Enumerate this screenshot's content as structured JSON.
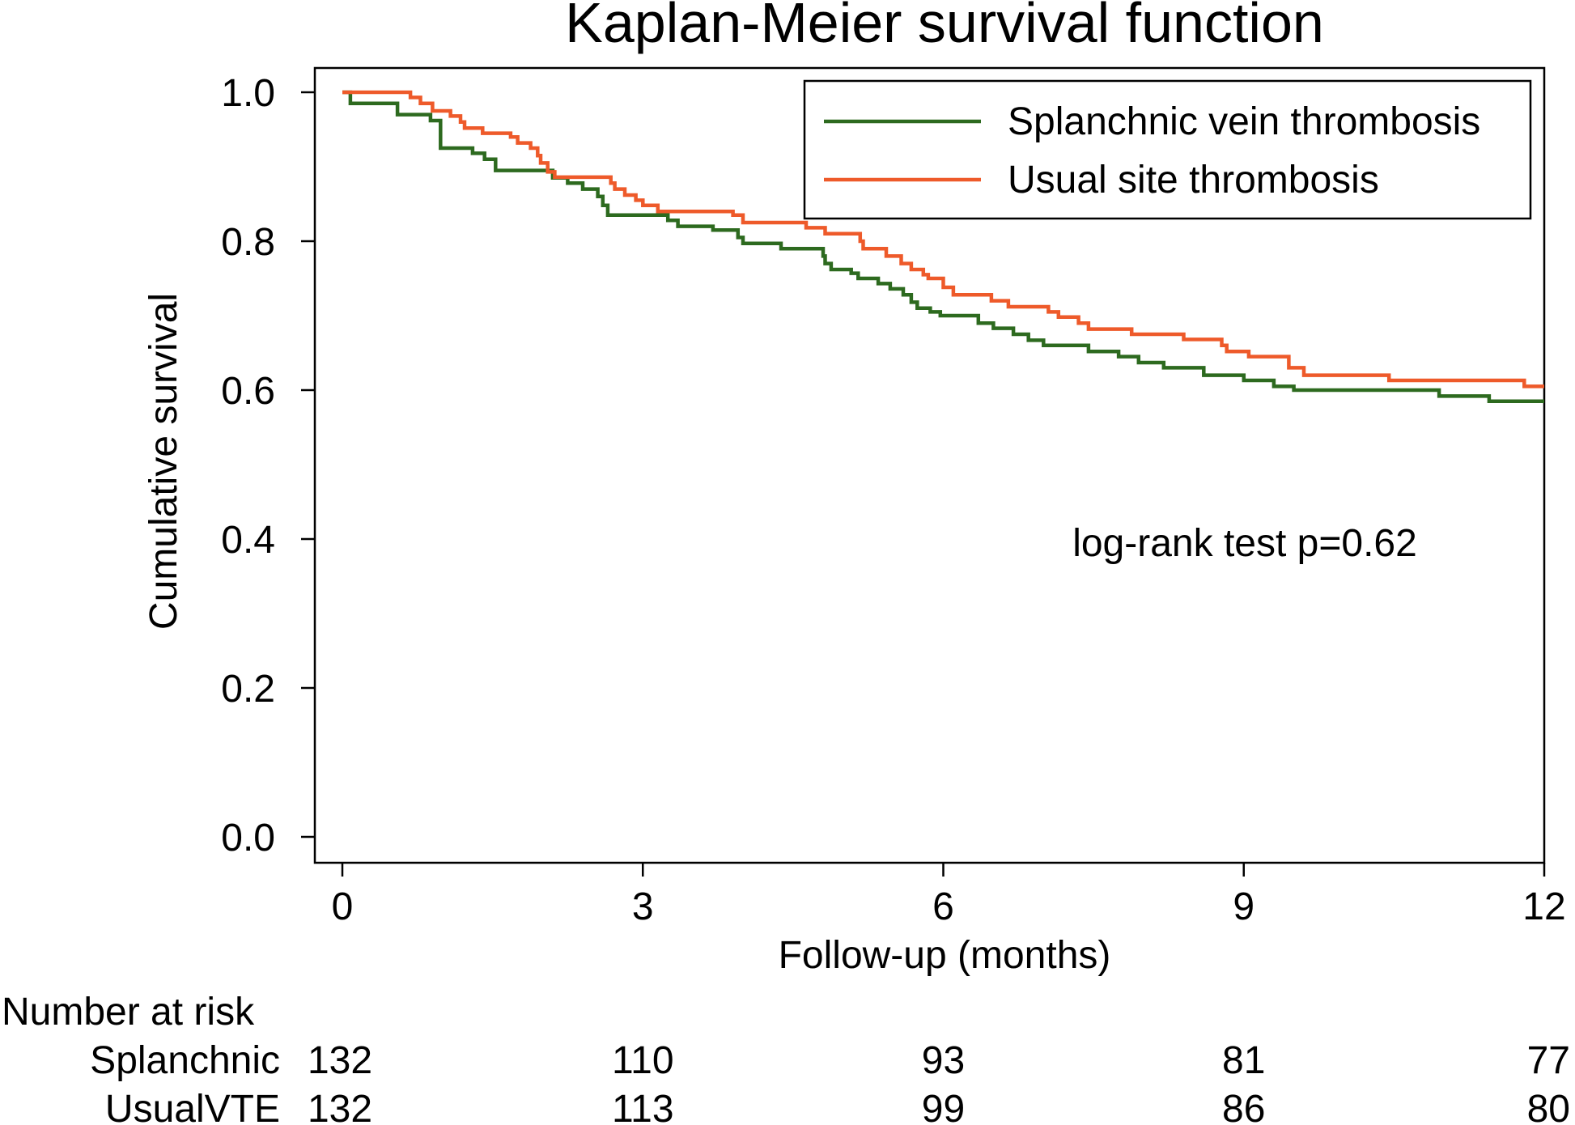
{
  "chart_data": {
    "type": "line",
    "subtype": "kaplan-meier step",
    "title": "Kaplan-Meier survival function",
    "xlabel": "Follow-up (months)",
    "ylabel": "Cumulative survival",
    "xlim": [
      0,
      12
    ],
    "ylim": [
      0,
      1
    ],
    "xticks": [
      0,
      3,
      6,
      9,
      12
    ],
    "xtick_labels": [
      "0",
      "3",
      "6",
      "9",
      "12"
    ],
    "yticks": [
      0,
      0.2,
      0.4,
      0.6,
      0.8,
      1.0
    ],
    "ytick_labels": [
      "0.0",
      "0.2",
      "0.4",
      "0.6",
      "0.8",
      "1.0"
    ],
    "grid": false,
    "legend_position": "top-right",
    "annotation": "log-rank test p=0.62",
    "series": [
      {
        "name": "Splanchnic vein thrombosis",
        "color": "#2d6a1f",
        "points": [
          [
            0,
            1.0
          ],
          [
            0.08,
            0.985
          ],
          [
            0.55,
            0.97
          ],
          [
            0.88,
            0.962
          ],
          [
            0.98,
            0.925
          ],
          [
            1.3,
            0.918
          ],
          [
            1.42,
            0.91
          ],
          [
            1.53,
            0.895
          ],
          [
            2.05,
            0.895
          ],
          [
            2.1,
            0.885
          ],
          [
            2.25,
            0.878
          ],
          [
            2.4,
            0.87
          ],
          [
            2.55,
            0.86
          ],
          [
            2.6,
            0.848
          ],
          [
            2.65,
            0.835
          ],
          [
            3.25,
            0.828
          ],
          [
            3.35,
            0.82
          ],
          [
            3.7,
            0.815
          ],
          [
            3.95,
            0.805
          ],
          [
            4.0,
            0.797
          ],
          [
            4.38,
            0.79
          ],
          [
            4.8,
            0.78
          ],
          [
            4.82,
            0.77
          ],
          [
            4.88,
            0.762
          ],
          [
            5.08,
            0.757
          ],
          [
            5.15,
            0.75
          ],
          [
            5.35,
            0.743
          ],
          [
            5.47,
            0.736
          ],
          [
            5.6,
            0.728
          ],
          [
            5.68,
            0.718
          ],
          [
            5.74,
            0.71
          ],
          [
            5.87,
            0.705
          ],
          [
            5.97,
            0.7
          ],
          [
            6.35,
            0.69
          ],
          [
            6.5,
            0.683
          ],
          [
            6.7,
            0.675
          ],
          [
            6.85,
            0.667
          ],
          [
            7.0,
            0.66
          ],
          [
            7.45,
            0.652
          ],
          [
            7.75,
            0.645
          ],
          [
            7.95,
            0.637
          ],
          [
            8.2,
            0.63
          ],
          [
            8.6,
            0.62
          ],
          [
            8.78,
            0.62
          ],
          [
            9.0,
            0.613
          ],
          [
            9.3,
            0.605
          ],
          [
            9.5,
            0.6
          ],
          [
            10.95,
            0.592
          ],
          [
            11.45,
            0.585
          ],
          [
            12.0,
            0.585
          ]
        ]
      },
      {
        "name": "Usual site thrombosis",
        "color": "#ee5a2a",
        "points": [
          [
            0,
            1.0
          ],
          [
            0.68,
            0.993
          ],
          [
            0.78,
            0.985
          ],
          [
            0.9,
            0.975
          ],
          [
            1.08,
            0.968
          ],
          [
            1.18,
            0.96
          ],
          [
            1.22,
            0.952
          ],
          [
            1.4,
            0.945
          ],
          [
            1.68,
            0.94
          ],
          [
            1.75,
            0.932
          ],
          [
            1.88,
            0.925
          ],
          [
            1.95,
            0.915
          ],
          [
            1.98,
            0.905
          ],
          [
            2.05,
            0.893
          ],
          [
            2.12,
            0.886
          ],
          [
            2.68,
            0.878
          ],
          [
            2.72,
            0.87
          ],
          [
            2.82,
            0.862
          ],
          [
            2.93,
            0.855
          ],
          [
            3.0,
            0.848
          ],
          [
            3.15,
            0.84
          ],
          [
            3.9,
            0.835
          ],
          [
            4.0,
            0.825
          ],
          [
            4.63,
            0.818
          ],
          [
            4.82,
            0.81
          ],
          [
            5.17,
            0.8
          ],
          [
            5.2,
            0.79
          ],
          [
            5.43,
            0.78
          ],
          [
            5.58,
            0.77
          ],
          [
            5.68,
            0.762
          ],
          [
            5.8,
            0.755
          ],
          [
            5.85,
            0.75
          ],
          [
            6.0,
            0.738
          ],
          [
            6.1,
            0.728
          ],
          [
            6.48,
            0.72
          ],
          [
            6.65,
            0.712
          ],
          [
            7.05,
            0.705
          ],
          [
            7.15,
            0.698
          ],
          [
            7.35,
            0.69
          ],
          [
            7.45,
            0.682
          ],
          [
            7.88,
            0.675
          ],
          [
            8.4,
            0.668
          ],
          [
            8.78,
            0.66
          ],
          [
            8.83,
            0.652
          ],
          [
            9.05,
            0.645
          ],
          [
            9.45,
            0.63
          ],
          [
            9.6,
            0.62
          ],
          [
            10.45,
            0.613
          ],
          [
            11.8,
            0.605
          ],
          [
            12.0,
            0.605
          ]
        ]
      }
    ],
    "risk_table": {
      "heading": "Number at risk",
      "rows": [
        {
          "label": "Splanchnic",
          "values": [
            "132",
            "110",
            "93",
            "81",
            "77"
          ]
        },
        {
          "label": "UsualVTE",
          "values": [
            "132",
            "113",
            "99",
            "86",
            "80"
          ]
        }
      ]
    }
  }
}
